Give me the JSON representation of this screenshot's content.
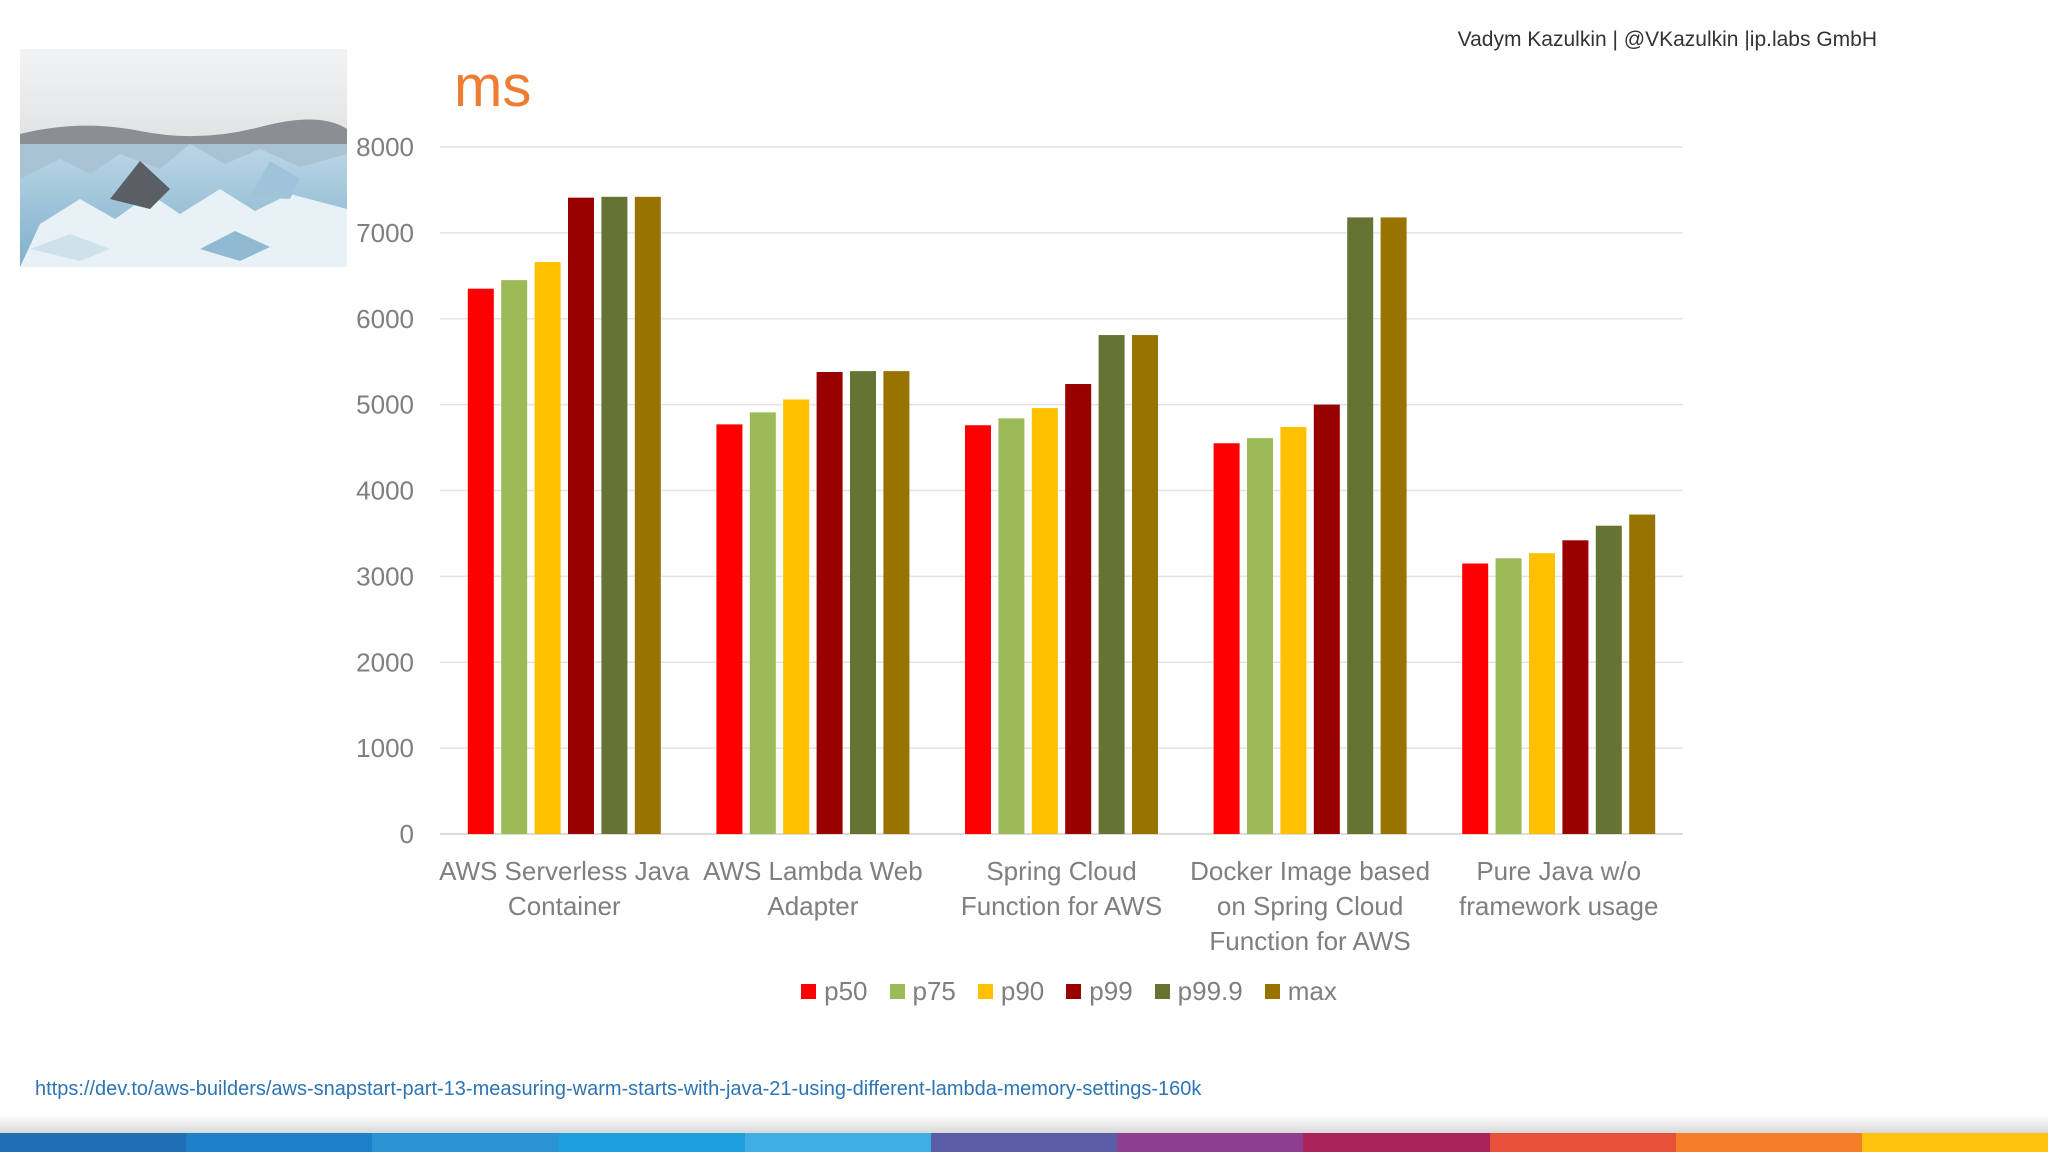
{
  "author": "Vadym Kazulkin | @VKazulkin |ip.labs GmbH",
  "source_url": "https://dev.to/aws-builders/aws-snapstart-part-13-measuring-warm-starts-with-java-21-using-different-lambda-memory-settings-160k",
  "footer_colors": [
    "#1F6FB5",
    "#1E80C8",
    "#2993D4",
    "#1DA0DB",
    "#3FAEE5",
    "#5B5EA6",
    "#8E3E8F",
    "#A8235A",
    "#E8503A",
    "#F47F28",
    "#FFC20E"
  ],
  "chart_data": {
    "type": "bar",
    "title": "ms",
    "xlabel": "",
    "ylabel": "",
    "ylim": [
      0,
      8000
    ],
    "yticks": [
      0,
      1000,
      2000,
      3000,
      4000,
      5000,
      6000,
      7000,
      8000
    ],
    "grid": true,
    "legend_position": "bottom",
    "categories": [
      [
        "AWS Serverless Java",
        "Container"
      ],
      [
        "AWS Lambda Web",
        "Adapter"
      ],
      [
        "Spring Cloud",
        "Function for AWS"
      ],
      [
        "Docker Image based",
        "on Spring Cloud",
        "Function for AWS"
      ],
      [
        "Pure Java w/o",
        "framework usage"
      ]
    ],
    "series": [
      {
        "name": "p50",
        "color": "#FF0000",
        "values": [
          6350,
          4770,
          4760,
          4550,
          3150
        ]
      },
      {
        "name": "p75",
        "color": "#9BBB59",
        "values": [
          6450,
          4910,
          4840,
          4610,
          3210
        ]
      },
      {
        "name": "p90",
        "color": "#FFC000",
        "values": [
          6660,
          5060,
          4960,
          4740,
          3270
        ]
      },
      {
        "name": "p99",
        "color": "#990000",
        "values": [
          7410,
          5380,
          5240,
          5000,
          3420
        ]
      },
      {
        "name": "p99.9",
        "color": "#657432",
        "values": [
          7420,
          5390,
          5810,
          7180,
          3590
        ]
      },
      {
        "name": "max",
        "color": "#997300",
        "values": [
          7420,
          5390,
          5810,
          7180,
          3720
        ]
      }
    ]
  }
}
